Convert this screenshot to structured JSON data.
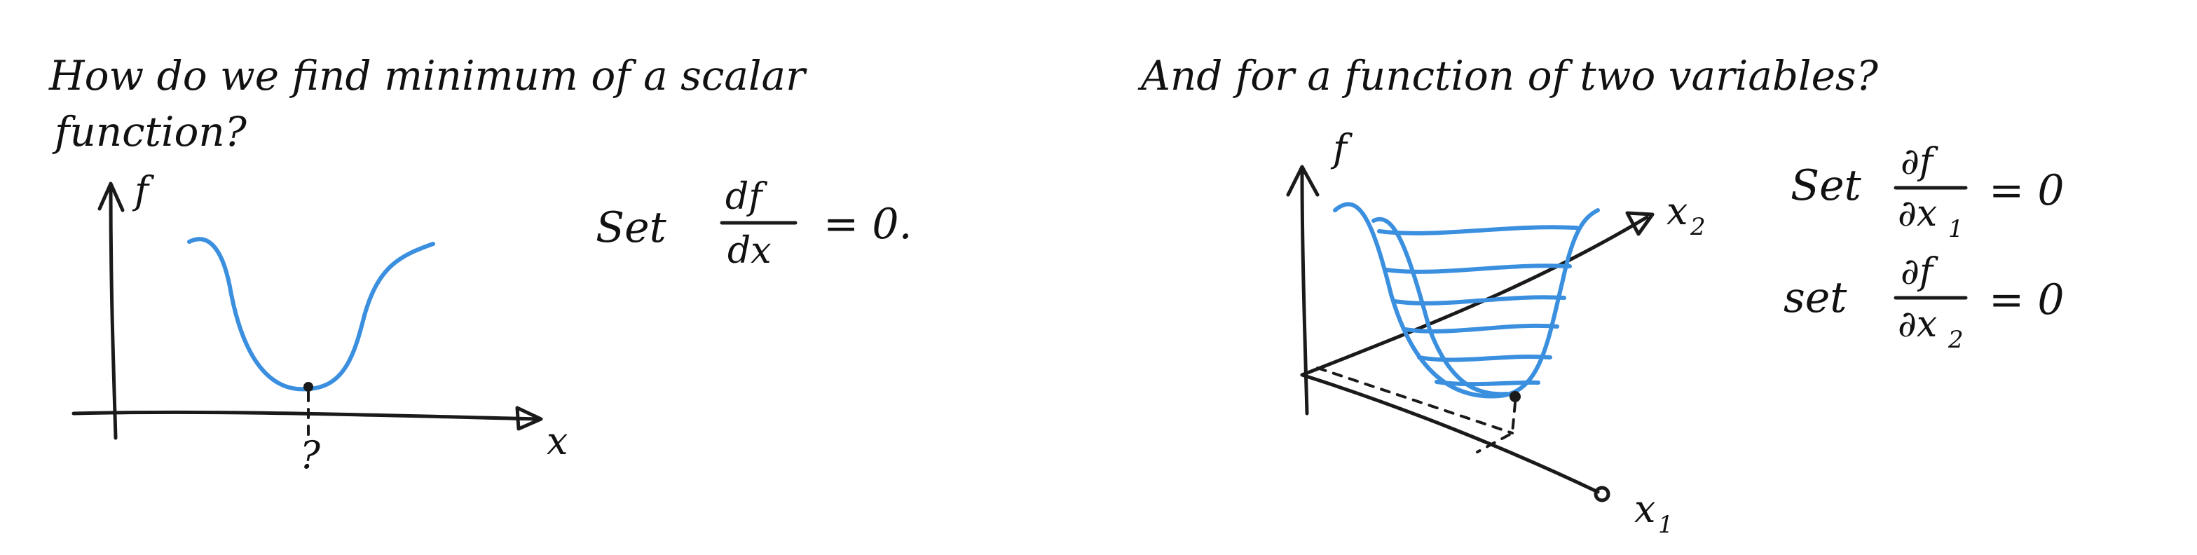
{
  "left": {
    "question_line1": "How do we find minimum of a scalar",
    "question_line2": "function?",
    "axis_y_label": "f",
    "axis_x_label": "x",
    "min_marker_label": "?",
    "equation": {
      "set_word": "Set",
      "numerator": "df",
      "denominator": "dx",
      "rhs": "= 0."
    }
  },
  "right": {
    "question": "And for a function of two variables?",
    "axis_f_label": "f",
    "axis_x2_label": "x",
    "axis_x2_sub": "2",
    "axis_x1_label": "x",
    "axis_x1_sub": "1",
    "equation1": {
      "set_word": "Set",
      "numerator": "∂f",
      "denominator": "∂x",
      "denominator_sub": "1",
      "rhs": "= 0"
    },
    "equation2": {
      "set_word": "set",
      "numerator": "∂f",
      "denominator": "∂x",
      "denominator_sub": "2",
      "rhs": "= 0"
    }
  },
  "colors": {
    "ink": "#1a1a1a",
    "curve": "#3b8fdf",
    "background": "#ffffff"
  }
}
